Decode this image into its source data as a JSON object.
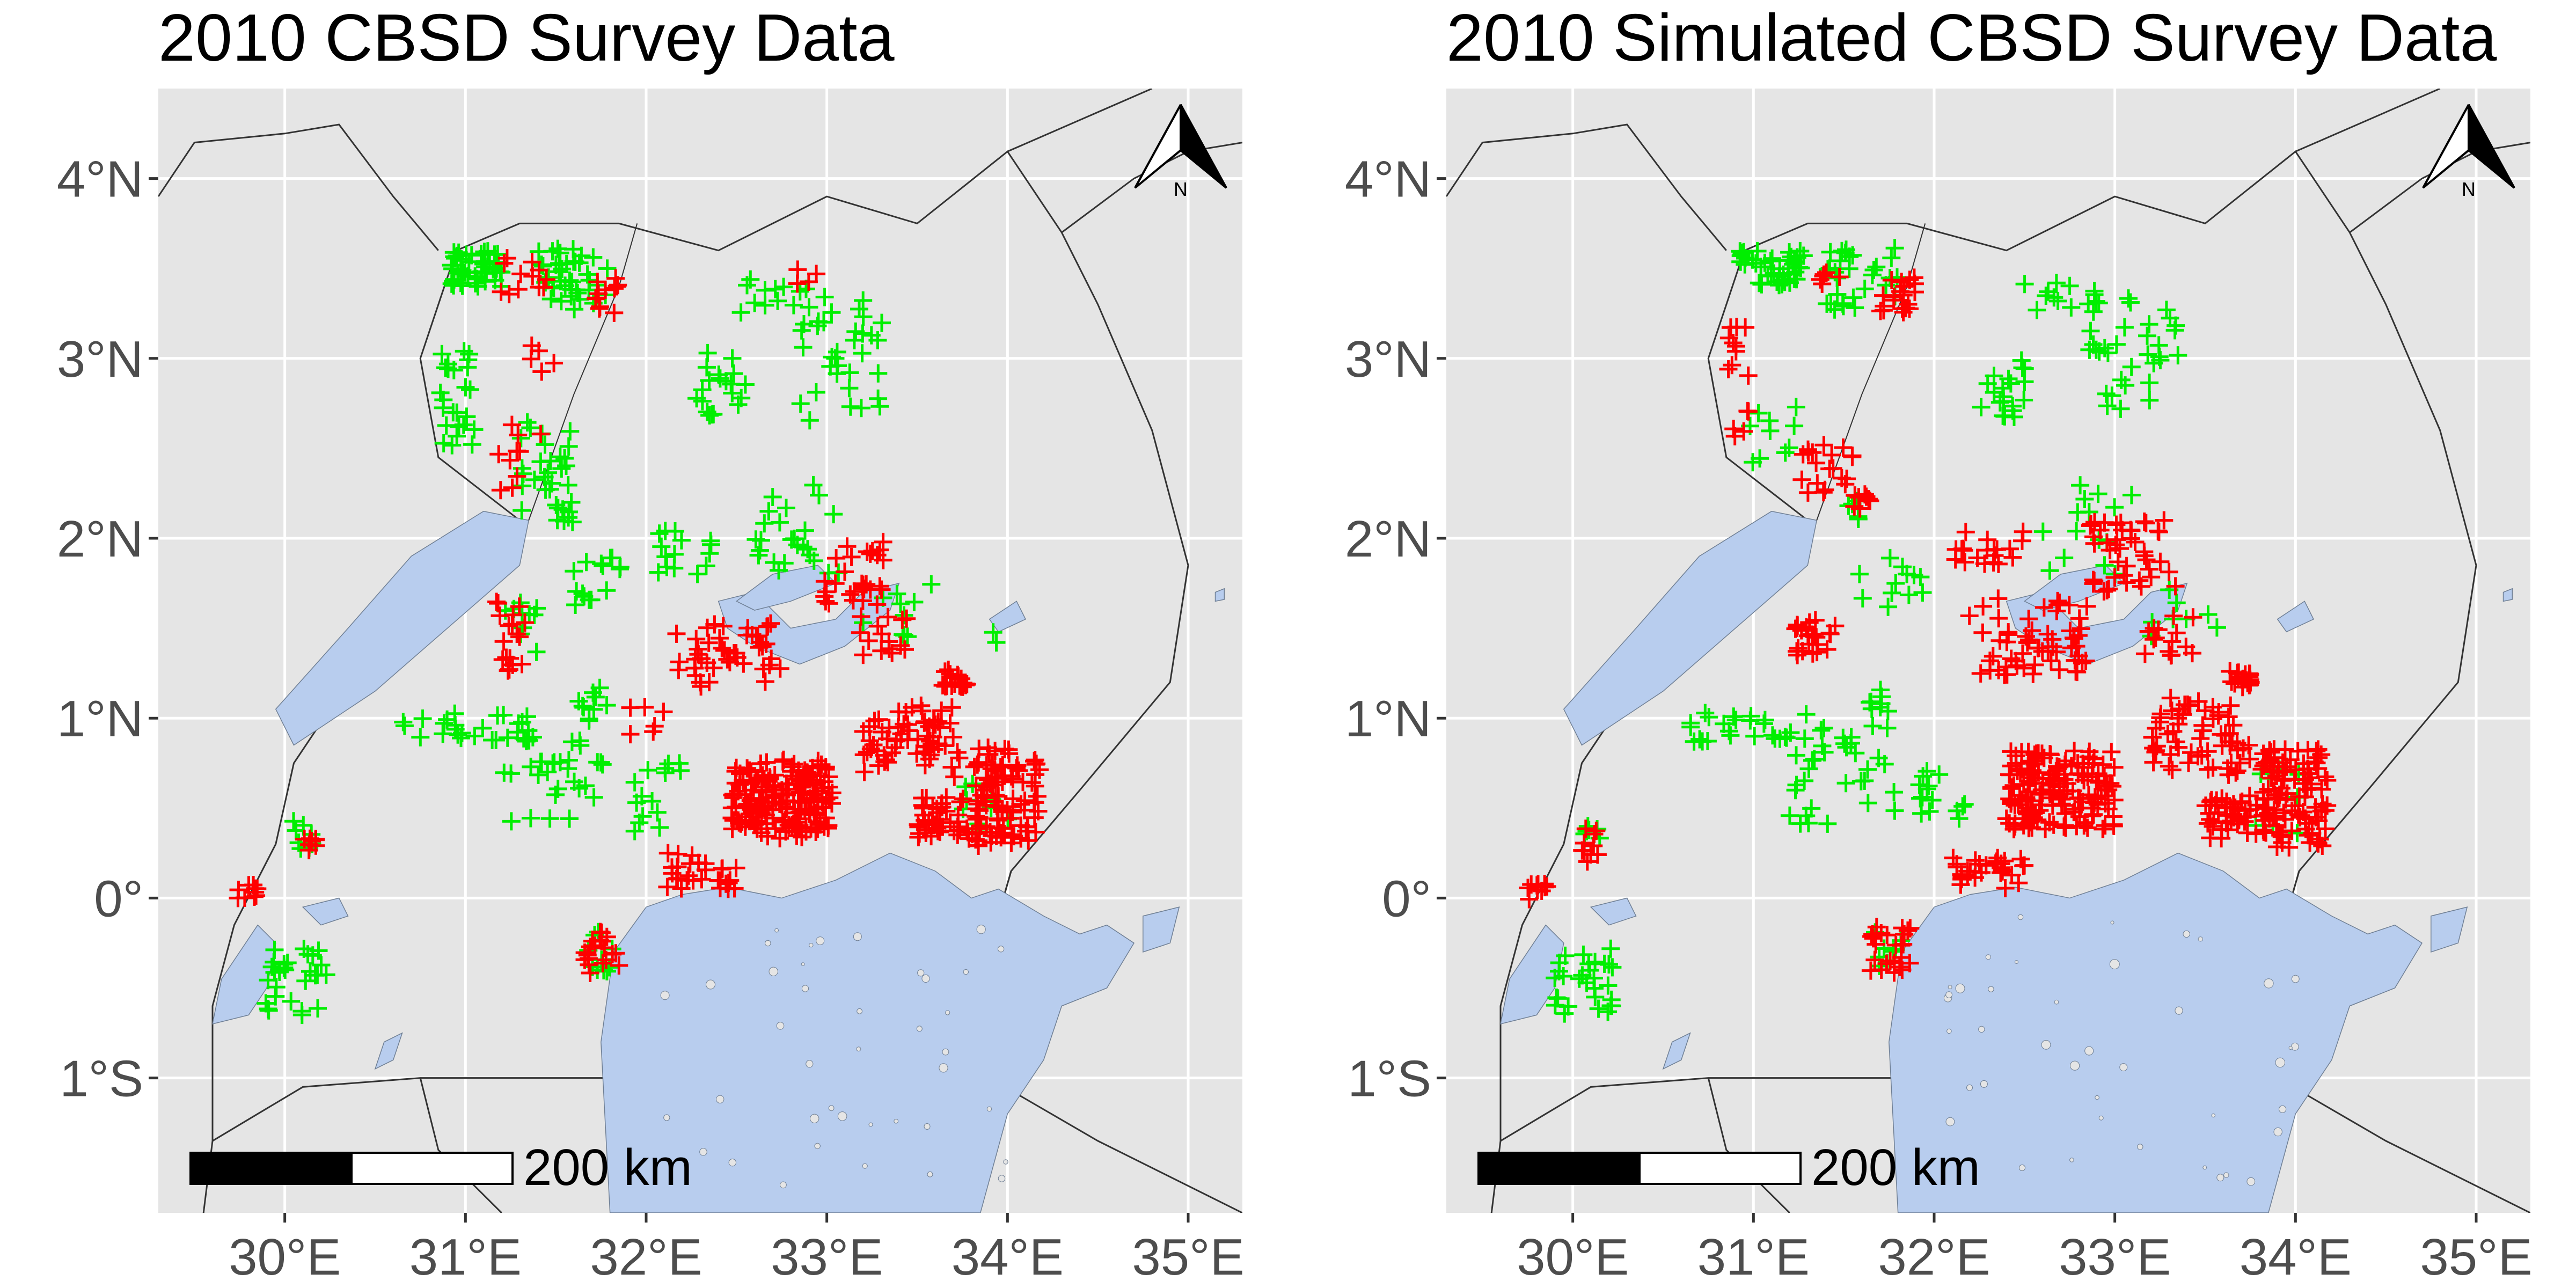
{
  "panels": [
    {
      "id": "observed",
      "title": "2010 CBSD Survey Data"
    },
    {
      "id": "simulated",
      "title": "2010 Simulated CBSD Survey Data"
    }
  ],
  "map": {
    "xlim": [
      29.3,
      35.3
    ],
    "ylim": [
      -1.75,
      4.5
    ],
    "x_ticks": [
      30,
      31,
      32,
      33,
      34,
      35
    ],
    "x_tick_labels": [
      "30°E",
      "31°E",
      "32°E",
      "33°E",
      "34°E",
      "35°E"
    ],
    "y_ticks": [
      -1,
      0,
      1,
      2,
      3,
      4
    ],
    "y_tick_labels": [
      "1°S",
      "0°",
      "1°N",
      "2°N",
      "3°N",
      "4°N"
    ],
    "grid": true,
    "north_arrow": {
      "label": "N",
      "position": "top-right"
    },
    "scale_bar": {
      "label": "200 km",
      "position": "bottom-left"
    },
    "colors": {
      "panel_bg": "#e5e5e5",
      "grid": "#ffffff",
      "water": "#b8cdee",
      "border": "#333333",
      "positive": "#ff0000",
      "negative": "#00ee00"
    }
  },
  "chart_data": {
    "type": "scatter",
    "marker": "plus",
    "categories": [
      "CBSD positive (red)",
      "CBSD negative (green)"
    ],
    "observed": {
      "positive_clusters": [
        [
          32.75,
          0.55,
          0.28,
          0.22,
          180
        ],
        [
          33.45,
          0.9,
          0.25,
          0.2,
          60
        ],
        [
          34.0,
          0.55,
          0.18,
          0.28,
          90
        ],
        [
          33.7,
          0.45,
          0.2,
          0.12,
          50
        ],
        [
          32.45,
          1.35,
          0.3,
          0.18,
          45
        ],
        [
          33.15,
          1.8,
          0.18,
          0.18,
          30
        ],
        [
          33.7,
          1.22,
          0.08,
          0.05,
          20
        ],
        [
          32.3,
          0.15,
          0.2,
          0.1,
          30
        ],
        [
          31.75,
          -0.3,
          0.1,
          0.12,
          20
        ],
        [
          31.25,
          1.45,
          0.08,
          0.2,
          18
        ],
        [
          31.3,
          2.45,
          0.12,
          0.2,
          10
        ],
        [
          31.3,
          3.45,
          0.15,
          0.12,
          12
        ],
        [
          31.8,
          3.35,
          0.08,
          0.12,
          12
        ],
        [
          29.8,
          0.03,
          0.08,
          0.05,
          10
        ],
        [
          30.15,
          0.3,
          0.05,
          0.05,
          8
        ],
        [
          32.9,
          3.45,
          0.1,
          0.06,
          4
        ],
        [
          33.8,
          0.75,
          0.15,
          0.1,
          10
        ],
        [
          33.3,
          1.45,
          0.15,
          0.12,
          15
        ],
        [
          32.0,
          1.0,
          0.1,
          0.1,
          6
        ],
        [
          31.45,
          3.0,
          0.1,
          0.08,
          5
        ]
      ],
      "negative_clusters": [
        [
          31.05,
          3.5,
          0.15,
          0.1,
          50
        ],
        [
          31.6,
          3.45,
          0.2,
          0.18,
          40
        ],
        [
          30.95,
          2.8,
          0.1,
          0.3,
          25
        ],
        [
          32.4,
          2.85,
          0.15,
          0.18,
          20
        ],
        [
          33.1,
          3.0,
          0.25,
          0.35,
          35
        ],
        [
          32.7,
          3.35,
          0.2,
          0.1,
          12
        ],
        [
          31.45,
          2.4,
          0.15,
          0.25,
          25
        ],
        [
          31.55,
          2.15,
          0.05,
          0.06,
          8
        ],
        [
          31.75,
          1.75,
          0.2,
          0.15,
          15
        ],
        [
          32.2,
          1.9,
          0.2,
          0.15,
          15
        ],
        [
          32.85,
          2.05,
          0.25,
          0.25,
          25
        ],
        [
          31.0,
          0.95,
          0.35,
          0.08,
          25
        ],
        [
          31.5,
          0.7,
          0.3,
          0.3,
          35
        ],
        [
          32.05,
          0.55,
          0.15,
          0.2,
          15
        ],
        [
          30.05,
          -0.45,
          0.18,
          0.2,
          30
        ],
        [
          30.1,
          0.35,
          0.06,
          0.08,
          8
        ],
        [
          31.75,
          -0.3,
          0.08,
          0.12,
          10
        ],
        [
          33.4,
          1.6,
          0.2,
          0.15,
          10
        ],
        [
          33.9,
          0.55,
          0.15,
          0.2,
          10
        ],
        [
          31.3,
          1.5,
          0.1,
          0.15,
          10
        ],
        [
          31.7,
          1.1,
          0.12,
          0.08,
          8
        ],
        [
          33.9,
          1.45,
          0.05,
          0.05,
          2
        ]
      ]
    },
    "simulated": {
      "positive_clusters": [
        [
          32.7,
          0.6,
          0.3,
          0.22,
          170
        ],
        [
          33.45,
          0.9,
          0.25,
          0.22,
          60
        ],
        [
          34.0,
          0.55,
          0.18,
          0.28,
          90
        ],
        [
          33.7,
          0.45,
          0.2,
          0.12,
          50
        ],
        [
          32.5,
          1.45,
          0.35,
          0.22,
          60
        ],
        [
          33.1,
          1.9,
          0.25,
          0.2,
          45
        ],
        [
          32.3,
          1.95,
          0.2,
          0.1,
          20
        ],
        [
          33.7,
          1.22,
          0.08,
          0.05,
          20
        ],
        [
          32.3,
          0.15,
          0.2,
          0.1,
          30
        ],
        [
          31.75,
          -0.3,
          0.12,
          0.14,
          25
        ],
        [
          31.35,
          1.45,
          0.12,
          0.1,
          25
        ],
        [
          31.4,
          2.4,
          0.15,
          0.15,
          20
        ],
        [
          30.9,
          2.9,
          0.08,
          0.35,
          15
        ],
        [
          31.8,
          3.35,
          0.1,
          0.1,
          20
        ],
        [
          31.4,
          3.45,
          0.1,
          0.06,
          6
        ],
        [
          29.8,
          0.03,
          0.08,
          0.05,
          10
        ],
        [
          30.1,
          0.3,
          0.05,
          0.1,
          10
        ],
        [
          33.85,
          0.75,
          0.15,
          0.1,
          12
        ],
        [
          31.6,
          2.2,
          0.05,
          0.06,
          8
        ],
        [
          33.3,
          1.45,
          0.15,
          0.12,
          15
        ]
      ],
      "negative_clusters": [
        [
          31.1,
          3.5,
          0.18,
          0.1,
          45
        ],
        [
          31.6,
          3.45,
          0.2,
          0.18,
          30
        ],
        [
          32.4,
          2.85,
          0.15,
          0.18,
          20
        ],
        [
          33.1,
          3.0,
          0.25,
          0.35,
          35
        ],
        [
          32.7,
          3.35,
          0.2,
          0.1,
          12
        ],
        [
          31.1,
          2.6,
          0.15,
          0.2,
          10
        ],
        [
          31.75,
          1.75,
          0.2,
          0.15,
          12
        ],
        [
          32.85,
          2.05,
          0.25,
          0.25,
          15
        ],
        [
          31.0,
          0.95,
          0.35,
          0.08,
          25
        ],
        [
          31.5,
          0.7,
          0.3,
          0.3,
          35
        ],
        [
          32.05,
          0.55,
          0.15,
          0.2,
          15
        ],
        [
          30.05,
          -0.45,
          0.18,
          0.2,
          30
        ],
        [
          30.1,
          0.35,
          0.06,
          0.08,
          6
        ],
        [
          31.75,
          -0.3,
          0.08,
          0.12,
          8
        ],
        [
          33.4,
          1.6,
          0.2,
          0.15,
          8
        ],
        [
          33.9,
          0.55,
          0.15,
          0.2,
          8
        ],
        [
          31.7,
          1.1,
          0.12,
          0.08,
          8
        ],
        [
          31.55,
          2.15,
          0.05,
          0.06,
          5
        ]
      ]
    }
  }
}
